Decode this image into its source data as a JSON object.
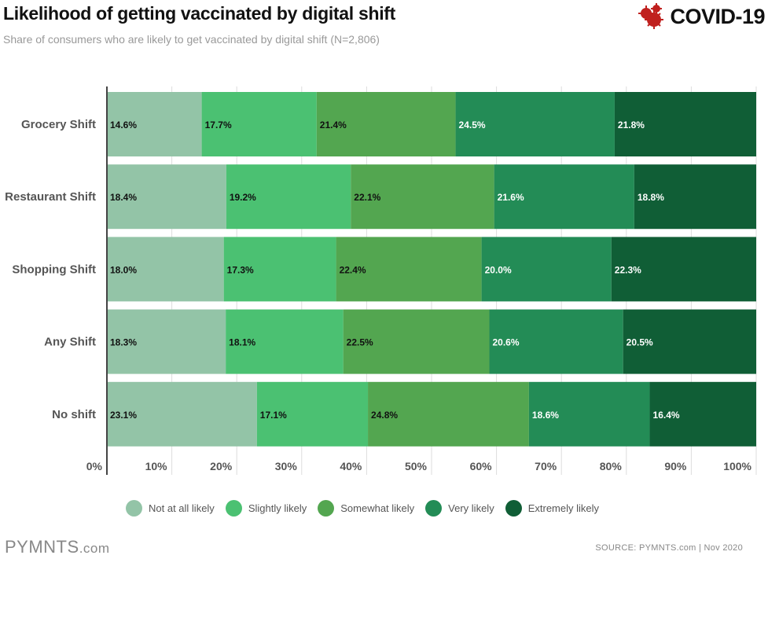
{
  "header": {
    "title": "Likelihood of getting vaccinated by digital shift",
    "subtitle": "Share of consumers who are likely to get vaccinated by digital shift (N=2,806)",
    "logo": "COVID-19"
  },
  "chart_data": {
    "type": "bar",
    "orientation": "horizontal",
    "stacked": true,
    "title": "Likelihood of getting vaccinated by digital shift",
    "categories": [
      "Grocery Shift",
      "Restaurant Shift",
      "Shopping Shift",
      "Any Shift",
      "No shift"
    ],
    "series": [
      {
        "name": "Not at all likely",
        "color": "#93c4a7",
        "values": [
          14.6,
          18.4,
          18.0,
          18.3,
          23.1
        ]
      },
      {
        "name": "Slightly likely",
        "color": "#4bc172",
        "values": [
          17.7,
          19.2,
          17.3,
          18.1,
          17.1
        ]
      },
      {
        "name": "Somewhat likely",
        "color": "#53a650",
        "values": [
          21.4,
          22.1,
          22.4,
          22.5,
          24.8
        ]
      },
      {
        "name": "Very likely",
        "color": "#238c56",
        "values": [
          24.5,
          21.6,
          20.0,
          20.6,
          18.6
        ]
      },
      {
        "name": "Extremely likely",
        "color": "#105e36",
        "values": [
          21.8,
          18.8,
          22.3,
          20.5,
          16.4
        ]
      }
    ],
    "xlim": [
      0,
      100
    ],
    "xticks": [
      "0%",
      "10%",
      "20%",
      "30%",
      "40%",
      "50%",
      "60%",
      "70%",
      "80%",
      "90%",
      "100%"
    ],
    "legend": "bottom"
  },
  "footer": {
    "brand": "PYMNTS",
    "brand_suffix": ".com",
    "source": "SOURCE: PYMNTS.com  |  Nov 2020"
  }
}
